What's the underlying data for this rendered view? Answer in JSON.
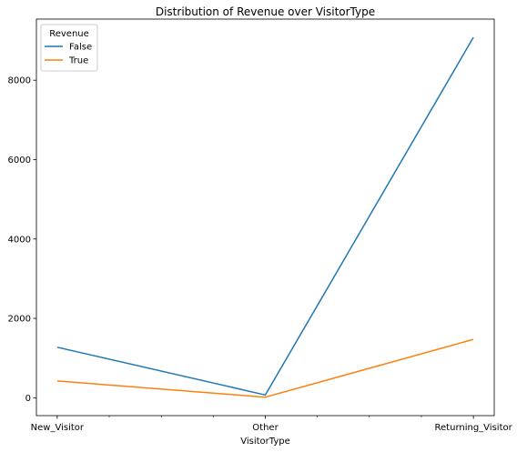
{
  "chart_data": {
    "type": "line",
    "title": "Distribution of Revenue over VisitorType",
    "xlabel": "VisitorType",
    "ylabel": "",
    "categories": [
      "New_Visitor",
      "Other",
      "Returning_Visitor"
    ],
    "ylim": [
      -450,
      9540
    ],
    "yticks": [
      0,
      2000,
      4000,
      6000,
      8000
    ],
    "legend": {
      "title": "Revenue",
      "position": "top-left"
    },
    "series": [
      {
        "name": "False",
        "color": "#1f77b4",
        "values": [
          1272,
          69,
          9081
        ]
      },
      {
        "name": "True",
        "color": "#ff7f0e",
        "values": [
          422,
          16,
          1470
        ]
      }
    ],
    "grid": false
  }
}
